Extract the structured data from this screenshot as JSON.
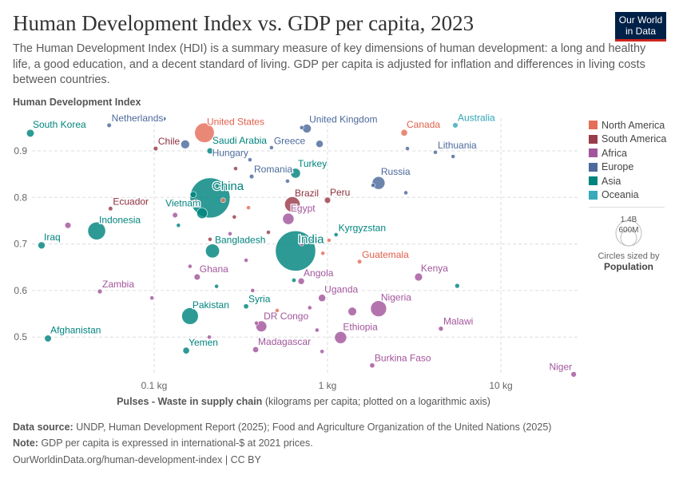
{
  "header": {
    "title": "Human Development Index vs. GDP per capita, 2023",
    "subtitle": "The Human Development Index (HDI) is a summary measure of key dimensions of human development: a long and healthy life, a good education, and a decent standard of living. GDP per capita is adjusted for inflation and differences in living costs between countries.",
    "logo": "Our World in Data"
  },
  "footer": {
    "source_label": "Data source:",
    "source": "UNDP, Human Development Report (2025); Food and Agriculture Organization of the United Nations (2025)",
    "note_label": "Note:",
    "note": "GDP per capita is expressed in international-$ at 2021 prices.",
    "url": "OurWorldinData.org/human-development-index | CC BY"
  },
  "legend": {
    "size_title": "Circles sized by",
    "size_var": "Population",
    "size_large": "1.4B",
    "size_small": "600M"
  },
  "colors": {
    "North America": "#e56e5a",
    "South America": "#9a3c4a",
    "Africa": "#a2559c",
    "Europe": "#4c6a9c",
    "Asia": "#00847e",
    "Oceania": "#38aaba"
  },
  "chart_data": {
    "type": "scatter",
    "title": "Human Development Index vs. GDP per capita, 2023",
    "ylabel": "Human Development Index",
    "xlabel_bold": "Pulses - Waste in supply chain",
    "xlabel_rest": "(kilograms per capita; plotted on a logarithmic axis)",
    "xscale": "log",
    "xlim": [
      0.011,
      30
    ],
    "ylim": [
      0.42,
      0.975
    ],
    "xticks": [
      {
        "v": 0.1,
        "label": "0.1 kg"
      },
      {
        "v": 1,
        "label": "1 kg"
      },
      {
        "v": 10,
        "label": "10 kg"
      }
    ],
    "yticks": [
      {
        "v": 0.5,
        "label": "0.5"
      },
      {
        "v": 0.6,
        "label": "0.6"
      },
      {
        "v": 0.7,
        "label": "0.7"
      },
      {
        "v": 0.8,
        "label": "0.8"
      },
      {
        "v": 0.9,
        "label": "0.9"
      }
    ],
    "grid": true,
    "legend_position": "right",
    "series_names": [
      "North America",
      "South America",
      "Africa",
      "Europe",
      "Asia",
      "Oceania"
    ],
    "points": [
      {
        "name": "South Korea",
        "region": "Asia",
        "pop": 52,
        "x": 0.0193,
        "y": 0.938
      },
      {
        "name": "Netherlands",
        "region": "Europe",
        "pop": 18,
        "x": 0.055,
        "y": 0.955
      },
      {
        "name": "United States",
        "region": "North America",
        "pop": 340,
        "x": 0.195,
        "y": 0.939
      },
      {
        "name": "Saudi Arabia",
        "region": "Asia",
        "pop": 33,
        "x": 0.21,
        "y": 0.9
      },
      {
        "name": "Greece",
        "region": "Europe",
        "pop": 10,
        "x": 0.475,
        "y": 0.907
      },
      {
        "name": "United Kingdom",
        "region": "Europe",
        "pop": 68,
        "x": 0.76,
        "y": 0.948
      },
      {
        "name": "Canada",
        "region": "North America",
        "pop": 39,
        "x": 2.77,
        "y": 0.939
      },
      {
        "name": "Australia",
        "region": "Oceania",
        "pop": 26,
        "x": 5.46,
        "y": 0.955
      },
      {
        "name": "Lithuania",
        "region": "Europe",
        "pop": 3,
        "x": 4.19,
        "y": 0.897
      },
      {
        "name": "Chile",
        "region": "South America",
        "pop": 19,
        "x": 0.102,
        "y": 0.905
      },
      {
        "name": "Hungary",
        "region": "Europe",
        "pop": 10,
        "x": 0.357,
        "y": 0.881
      },
      {
        "name": "Romania",
        "region": "Europe",
        "pop": 19,
        "x": 0.365,
        "y": 0.845
      },
      {
        "name": "Turkey",
        "region": "Asia",
        "pop": 85,
        "x": 0.654,
        "y": 0.852
      },
      {
        "name": "China",
        "region": "Asia",
        "pop": 1420,
        "x": 0.21,
        "y": 0.799
      },
      {
        "name": "Russia",
        "region": "Europe",
        "pop": 145,
        "x": 1.97,
        "y": 0.831
      },
      {
        "name": "Brazil",
        "region": "South America",
        "pop": 211,
        "x": 0.627,
        "y": 0.785
      },
      {
        "name": "Peru",
        "region": "South America",
        "pop": 34,
        "x": 1.0,
        "y": 0.794
      },
      {
        "name": "Ecuador",
        "region": "South America",
        "pop": 18,
        "x": 0.056,
        "y": 0.776
      },
      {
        "name": "Vietnam",
        "region": "Asia",
        "pop": 100,
        "x": 0.189,
        "y": 0.766
      },
      {
        "name": "Egypt",
        "region": "Africa",
        "pop": 114,
        "x": 0.594,
        "y": 0.754
      },
      {
        "name": "Indonesia",
        "region": "Asia",
        "pop": 280,
        "x": 0.0466,
        "y": 0.728
      },
      {
        "name": "Iraq",
        "region": "Asia",
        "pop": 45,
        "x": 0.0224,
        "y": 0.697
      },
      {
        "name": "India",
        "region": "Asia",
        "pop": 1430,
        "x": 0.654,
        "y": 0.685
      },
      {
        "name": "Kyrgyzstan",
        "region": "Asia",
        "pop": 7,
        "x": 1.12,
        "y": 0.72
      },
      {
        "name": "Bangladesh",
        "region": "Asia",
        "pop": 172,
        "x": 0.217,
        "y": 0.685
      },
      {
        "name": "Guatemala",
        "region": "North America",
        "pop": 18,
        "x": 1.53,
        "y": 0.662
      },
      {
        "name": "Kenya",
        "region": "Africa",
        "pop": 55,
        "x": 3.35,
        "y": 0.629
      },
      {
        "name": "Ghana",
        "region": "Africa",
        "pop": 34,
        "x": 0.177,
        "y": 0.629
      },
      {
        "name": "Angola",
        "region": "Africa",
        "pop": 37,
        "x": 0.705,
        "y": 0.62
      },
      {
        "name": "Zambia",
        "region": "Africa",
        "pop": 20,
        "x": 0.0486,
        "y": 0.598
      },
      {
        "name": "Uganda",
        "region": "Africa",
        "pop": 48,
        "x": 0.93,
        "y": 0.584
      },
      {
        "name": "Nigeria",
        "region": "Africa",
        "pop": 225,
        "x": 1.97,
        "y": 0.561
      },
      {
        "name": "Syria",
        "region": "Asia",
        "pop": 23,
        "x": 0.339,
        "y": 0.566
      },
      {
        "name": "Pakistan",
        "region": "Asia",
        "pop": 245,
        "x": 0.161,
        "y": 0.545
      },
      {
        "name": "DR Congo",
        "region": "Africa",
        "pop": 105,
        "x": 0.415,
        "y": 0.523
      },
      {
        "name": "Malawi",
        "region": "Africa",
        "pop": 21,
        "x": 4.51,
        "y": 0.518
      },
      {
        "name": "Ethiopia",
        "region": "Africa",
        "pop": 128,
        "x": 1.19,
        "y": 0.499
      },
      {
        "name": "Afghanistan",
        "region": "Asia",
        "pop": 42,
        "x": 0.0244,
        "y": 0.497
      },
      {
        "name": "Madagascar",
        "region": "Africa",
        "pop": 31,
        "x": 0.385,
        "y": 0.473
      },
      {
        "name": "Yemen",
        "region": "Asia",
        "pop": 39,
        "x": 0.153,
        "y": 0.471
      },
      {
        "name": "Burkina Faso",
        "region": "Africa",
        "pop": 23,
        "x": 1.81,
        "y": 0.439
      },
      {
        "name": "Niger",
        "region": "Africa",
        "pop": 27,
        "x": 26.3,
        "y": 0.42
      },
      {
        "region": "Europe",
        "pop": 6,
        "x": 0.114,
        "y": 0.969
      },
      {
        "region": "Europe",
        "pop": 68,
        "x": 0.151,
        "y": 0.914
      },
      {
        "region": "Asia",
        "pop": 6,
        "x": 0.118,
        "y": 0.92
      },
      {
        "region": "Europe",
        "pop": 9,
        "x": 0.9,
        "y": 0.969
      },
      {
        "region": "Europe",
        "pop": 11,
        "x": 0.71,
        "y": 0.95
      },
      {
        "region": "Europe",
        "pop": 47,
        "x": 0.9,
        "y": 0.915
      },
      {
        "region": "Europe",
        "pop": 5,
        "x": 2.89,
        "y": 0.905
      },
      {
        "region": "Europe",
        "pop": 5,
        "x": 5.3,
        "y": 0.888
      },
      {
        "region": "Europe",
        "pop": 5,
        "x": 2.83,
        "y": 0.81
      },
      {
        "region": "Europe",
        "pop": 6,
        "x": 1.83,
        "y": 0.826
      },
      {
        "region": "South America",
        "pop": 5,
        "x": 0.295,
        "y": 0.862
      },
      {
        "region": "Europe",
        "pop": 6,
        "x": 0.588,
        "y": 0.835
      },
      {
        "region": "Asia",
        "pop": 35,
        "x": 0.168,
        "y": 0.806
      },
      {
        "region": "South America",
        "pop": 28,
        "x": 0.174,
        "y": 0.79
      },
      {
        "region": "North America",
        "pop": 20,
        "x": 0.25,
        "y": 0.794
      },
      {
        "region": "North America",
        "pop": 5,
        "x": 0.35,
        "y": 0.778
      },
      {
        "region": "South America",
        "pop": 5,
        "x": 0.29,
        "y": 0.758
      },
      {
        "region": "Africa",
        "pop": 25,
        "x": 0.132,
        "y": 0.762
      },
      {
        "region": "Africa",
        "pop": 34,
        "x": 0.0318,
        "y": 0.74
      },
      {
        "region": "Asia",
        "pop": 10,
        "x": 0.138,
        "y": 0.74
      },
      {
        "region": "South America",
        "pop": 5,
        "x": 0.456,
        "y": 0.725
      },
      {
        "region": "Africa",
        "pop": 5,
        "x": 0.274,
        "y": 0.722
      },
      {
        "region": "South America",
        "pop": 6,
        "x": 0.21,
        "y": 0.71
      },
      {
        "region": "Africa",
        "pop": 5,
        "x": 0.71,
        "y": 0.7
      },
      {
        "region": "North America",
        "pop": 5,
        "x": 1.02,
        "y": 0.708
      },
      {
        "region": "North America",
        "pop": 5,
        "x": 0.94,
        "y": 0.68
      },
      {
        "region": "Asia",
        "pop": 17,
        "x": 0.64,
        "y": 0.622
      },
      {
        "region": "Africa",
        "pop": 5,
        "x": 0.161,
        "y": 0.652
      },
      {
        "region": "Africa",
        "pop": 5,
        "x": 0.339,
        "y": 0.665
      },
      {
        "region": "Asia",
        "pop": 5,
        "x": 0.229,
        "y": 0.609
      },
      {
        "region": "Asia",
        "pop": 20,
        "x": 5.6,
        "y": 0.61
      },
      {
        "region": "Africa",
        "pop": 9,
        "x": 0.097,
        "y": 0.584
      },
      {
        "region": "Africa",
        "pop": 5,
        "x": 0.37,
        "y": 0.6
      },
      {
        "region": "North America",
        "pop": 5,
        "x": 0.512,
        "y": 0.557
      },
      {
        "region": "Africa",
        "pop": 5,
        "x": 0.79,
        "y": 0.563
      },
      {
        "region": "Africa",
        "pop": 65,
        "x": 1.39,
        "y": 0.555
      },
      {
        "region": "Africa",
        "pop": 6,
        "x": 0.389,
        "y": 0.53
      },
      {
        "region": "Africa",
        "pop": 5,
        "x": 0.87,
        "y": 0.515
      },
      {
        "region": "Africa",
        "pop": 5,
        "x": 0.208,
        "y": 0.5
      },
      {
        "region": "Africa",
        "pop": 5,
        "x": 0.93,
        "y": 0.469
      }
    ]
  }
}
